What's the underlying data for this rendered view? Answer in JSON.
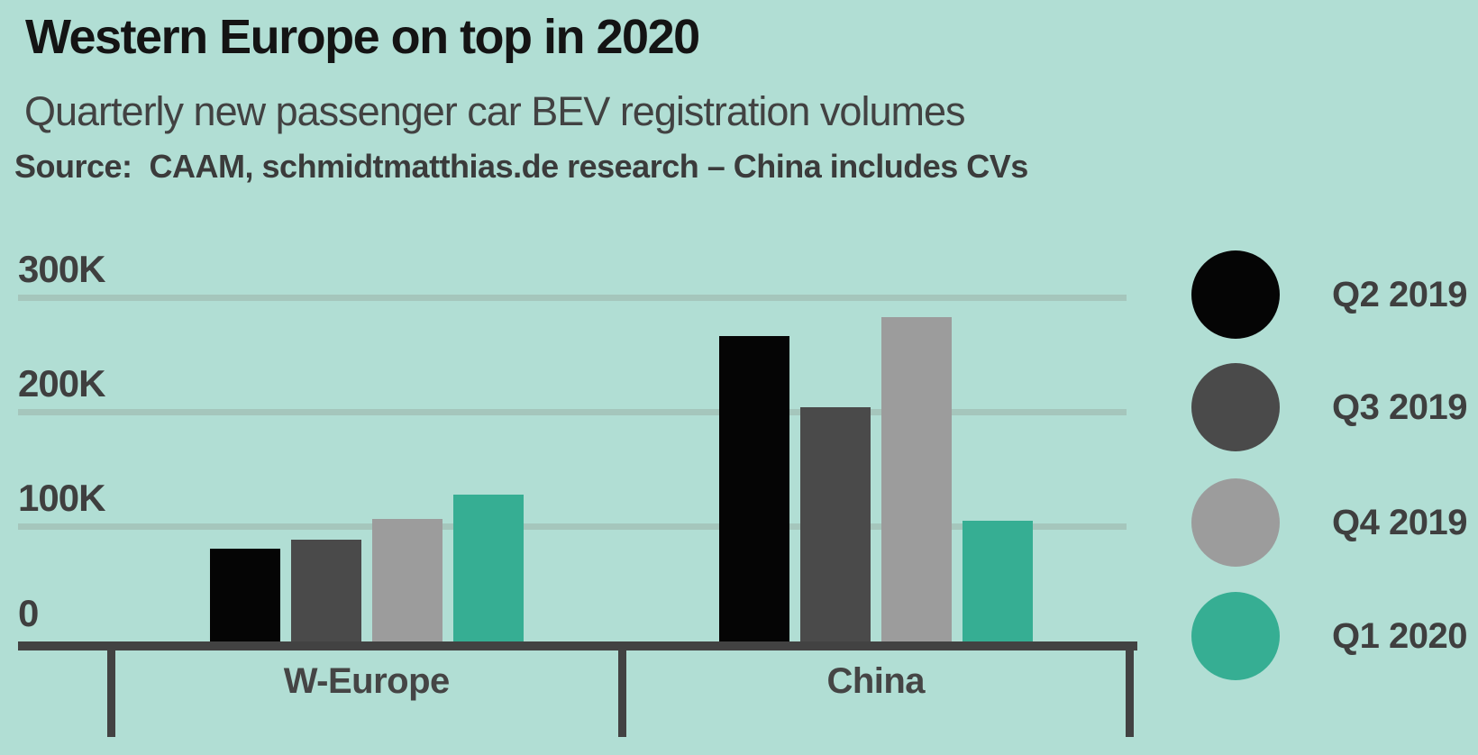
{
  "header": {
    "title": "Western Europe on top in 2020",
    "subtitle": "Quarterly new passenger car BEV registration volumes",
    "source": "Source:  CAAM, schmidtmatthias.de research – China includes CVs"
  },
  "colors": {
    "background": "#b1ded4",
    "gridline": "#a5c6bc",
    "axis": "#424242",
    "title_text": "#141414",
    "body_text": "#3f3f3f"
  },
  "chart_data": {
    "type": "bar",
    "title": "Western Europe on top in 2020",
    "subtitle": "Quarterly new passenger car BEV registration volumes",
    "source_note": "Source:  CAAM, schmidtmatthias.de research – China includes CVs",
    "categories": [
      "W-Europe",
      "China"
    ],
    "series": [
      {
        "name": "Q2 2019",
        "color": "#050505",
        "values": [
          81000,
          266000
        ]
      },
      {
        "name": "Q3 2019",
        "color": "#4a4a4a",
        "values": [
          89000,
          204000
        ]
      },
      {
        "name": "Q4 2019",
        "color": "#9c9c9c",
        "values": [
          107000,
          283000
        ]
      },
      {
        "name": "Q1 2020",
        "color": "#36ae93",
        "values": [
          128000,
          105000
        ]
      }
    ],
    "xlabel": "",
    "ylabel": "",
    "ylim": [
      0,
      300000
    ],
    "yticks": [
      {
        "value": 0,
        "label": "0"
      },
      {
        "value": 100000,
        "label": "100K"
      },
      {
        "value": 200000,
        "label": "200K"
      },
      {
        "value": 300000,
        "label": "300K"
      }
    ],
    "grid": true,
    "legend_position": "right"
  }
}
